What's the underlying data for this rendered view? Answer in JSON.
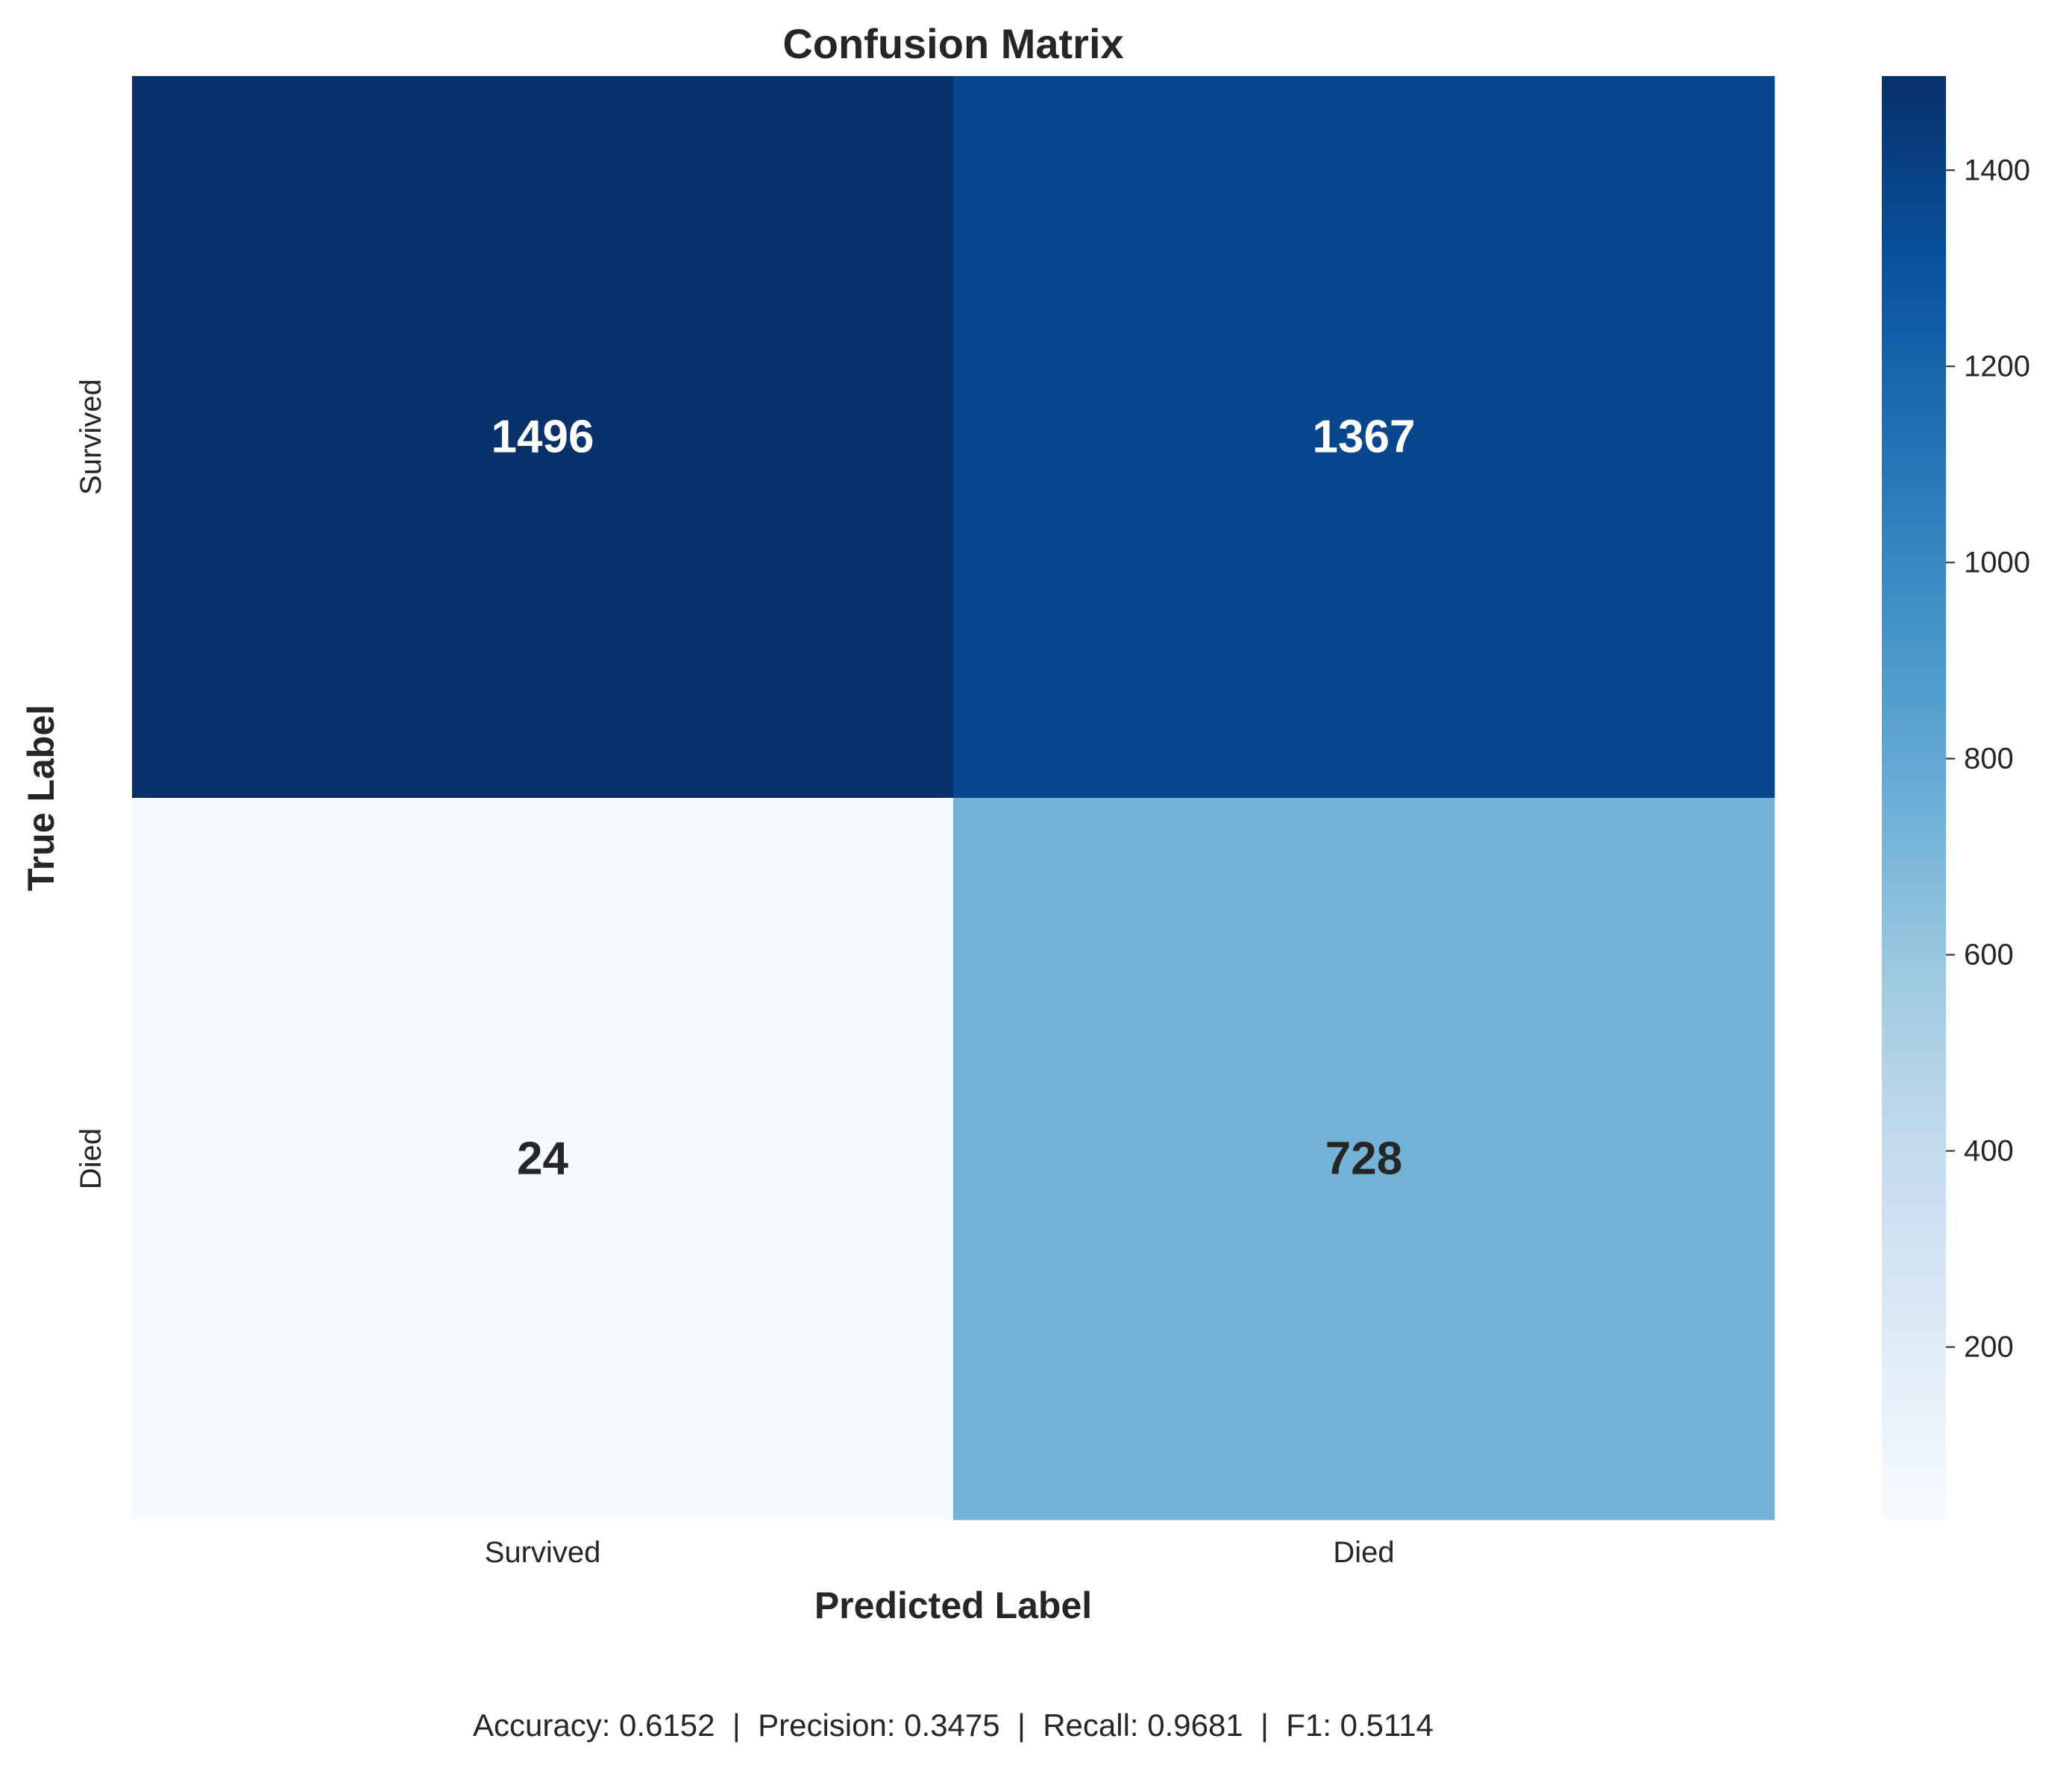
{
  "chart_data": {
    "type": "heatmap",
    "title": "Confusion Matrix",
    "xlabel": "Predicted Label",
    "ylabel": "True Label",
    "x_categories": [
      "Survived",
      "Died"
    ],
    "y_categories": [
      "Survived",
      "Died"
    ],
    "values": [
      [
        1496,
        1367
      ],
      [
        24,
        728
      ]
    ],
    "colormap": "Blues",
    "colorbar": {
      "min": 24,
      "max": 1496,
      "ticks": [
        200,
        400,
        600,
        800,
        1000,
        1200,
        1400
      ]
    },
    "grid": false
  },
  "footer_text": "Accuracy: 0.6152  |  Precision: 0.3475  |  Recall: 0.9681  |  F1: 0.5114",
  "colors": {
    "text_dark": "#262626",
    "text_light": "#ffffff",
    "blues_scale": [
      "#f7fbff",
      "#deebf7",
      "#c6dbef",
      "#9ecae1",
      "#6baed6",
      "#4292c6",
      "#2171b5",
      "#08519c",
      "#08306b"
    ]
  }
}
